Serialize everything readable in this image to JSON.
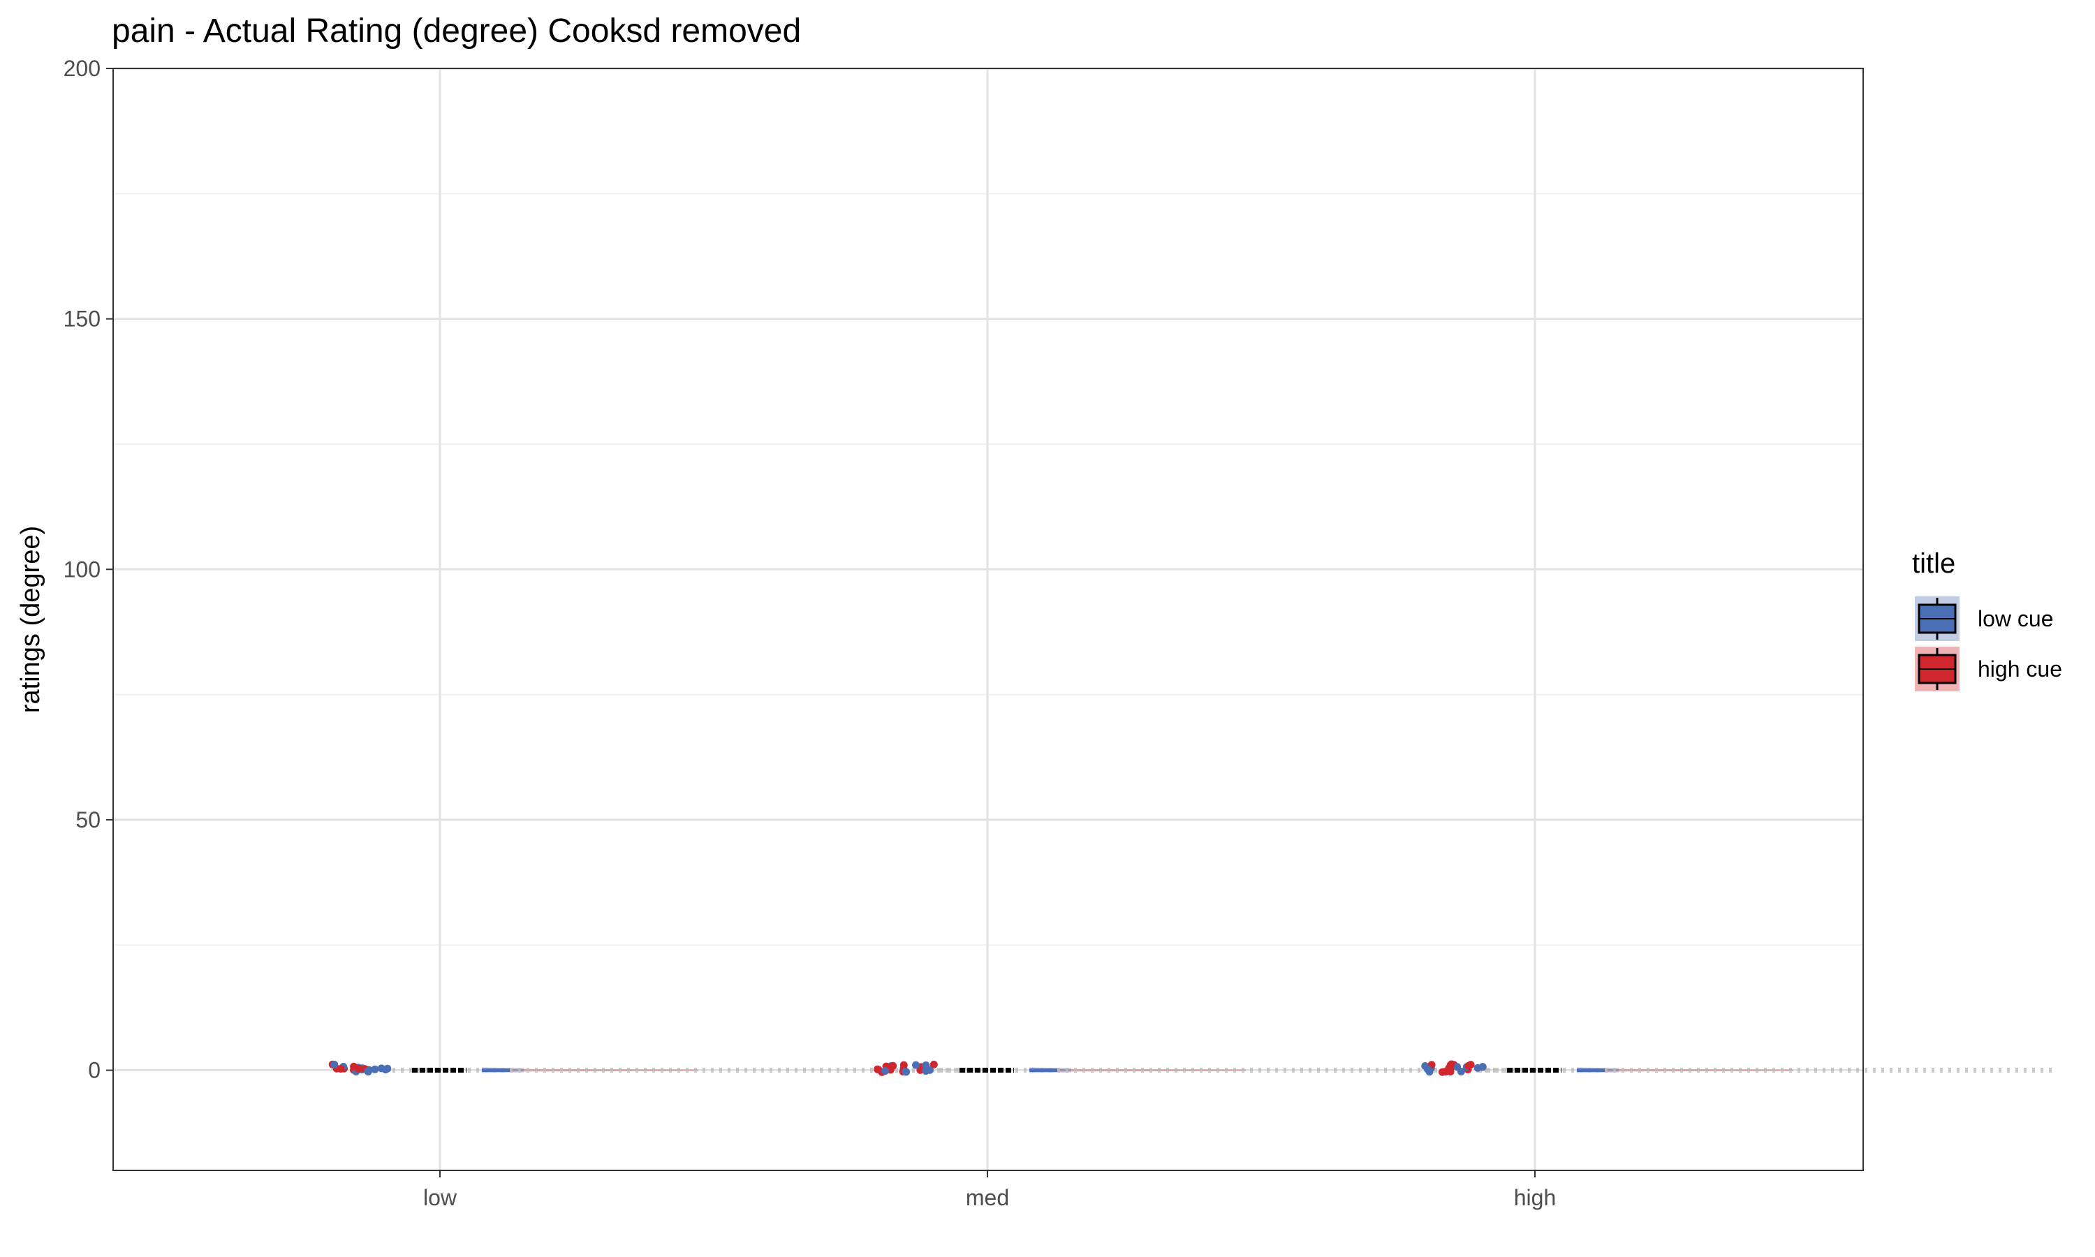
{
  "chart_data": {
    "type": "box",
    "title": "pain  - Actual Rating (degree) Cooksd removed",
    "xlabel": "",
    "ylabel": "ratings (degree)",
    "categories": [
      "low",
      "med",
      "high"
    ],
    "ylim": [
      -20,
      200
    ],
    "yticks": [
      0,
      50,
      100,
      150,
      200
    ],
    "grid": true,
    "legend": {
      "title": "title",
      "placement": "right",
      "entries": [
        {
          "name": "low cue",
          "color": "#4a6fb5"
        },
        {
          "name": "high cue",
          "color": "#d0262e"
        }
      ]
    },
    "series": [
      {
        "name": "low cue",
        "color": "#4a6fb5",
        "median": [
          0,
          0,
          0
        ]
      },
      {
        "name": "high cue",
        "color": "#d0262e",
        "median": [
          0,
          0,
          0
        ]
      }
    ]
  }
}
